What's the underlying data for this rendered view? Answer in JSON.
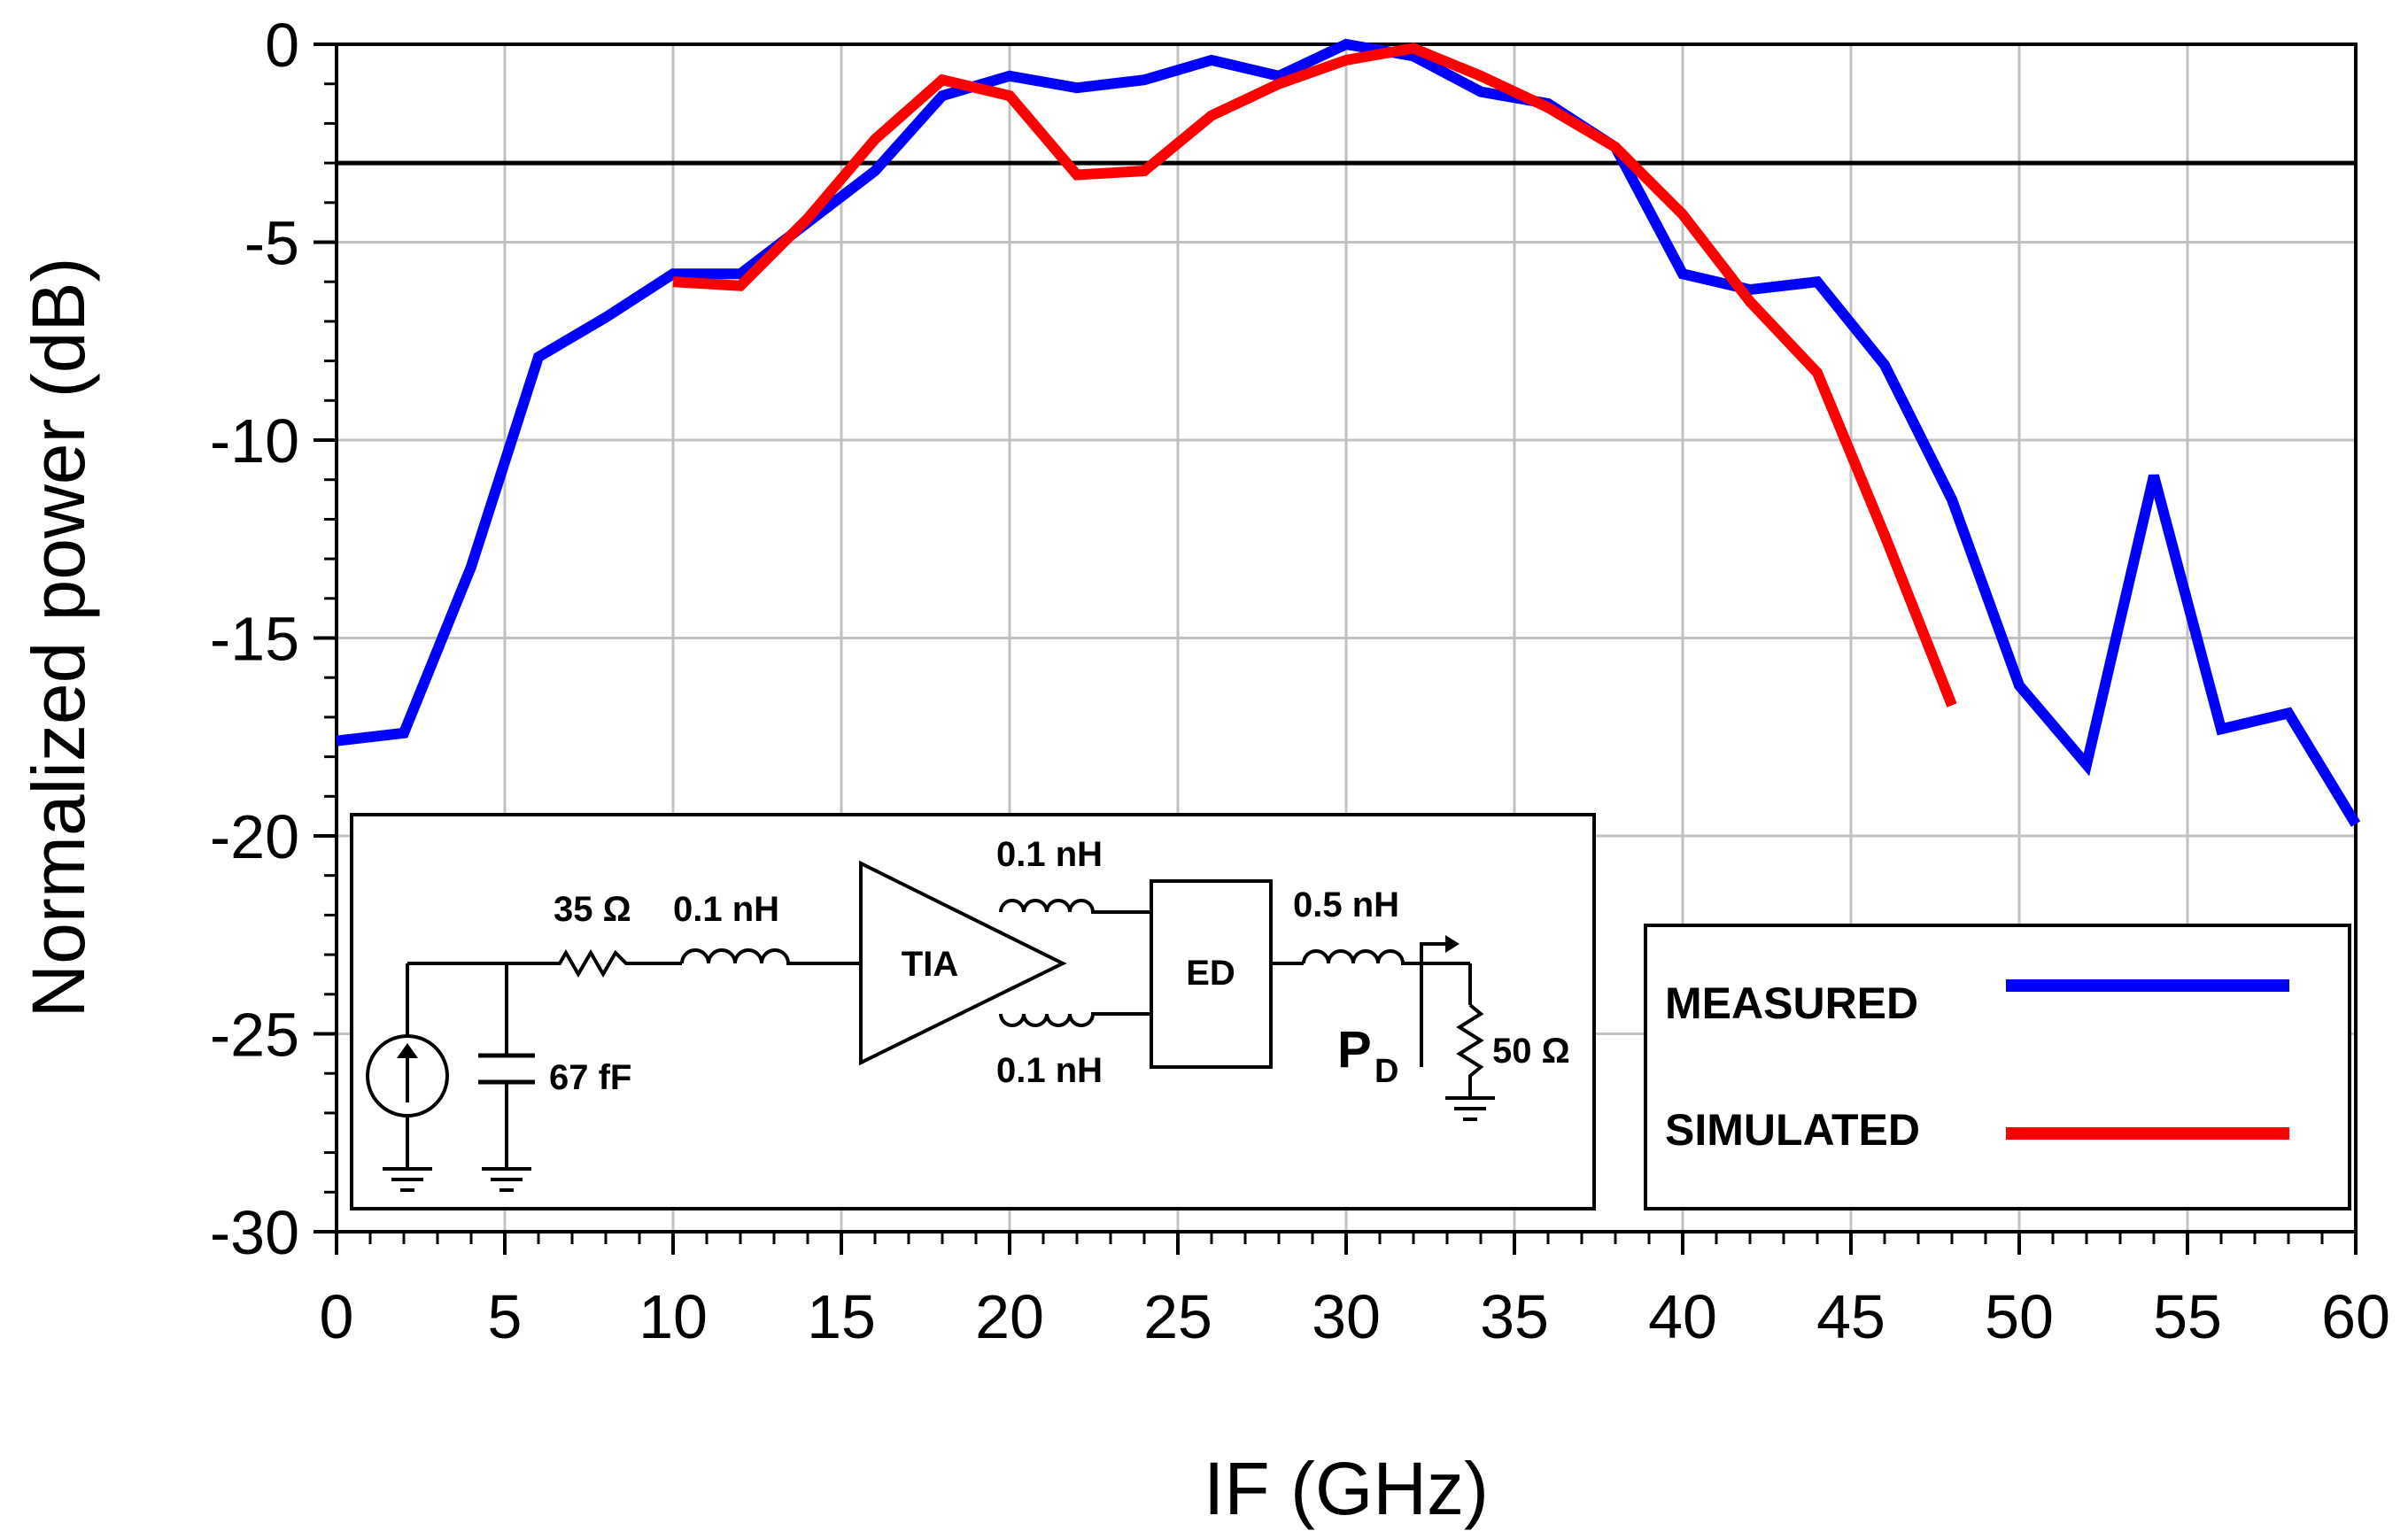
{
  "chart_data": {
    "type": "line",
    "xlabel": "IF (GHz)",
    "ylabel": "Normalized power (dB)",
    "xlim": [
      0,
      60
    ],
    "ylim": [
      -30,
      0
    ],
    "xticks": [
      0,
      5,
      10,
      15,
      20,
      25,
      30,
      35,
      40,
      45,
      50,
      55,
      60
    ],
    "yticks": [
      0,
      -5,
      -10,
      -15,
      -20,
      -25,
      -30
    ],
    "xtick_labels": [
      "0",
      "5",
      "10",
      "15",
      "20",
      "25",
      "30",
      "35",
      "40",
      "45",
      "50",
      "55",
      "60"
    ],
    "ytick_labels": [
      "0",
      "-5",
      "-10",
      "-15",
      "-20",
      "-25",
      "-30"
    ],
    "grid": true,
    "reference_line_y": -3,
    "legend_position": "bottom-right",
    "series": [
      {
        "name": "MEASURED",
        "color": "#0000ff",
        "x": [
          0,
          2,
          4,
          6,
          8,
          10,
          12,
          14,
          16,
          18,
          20,
          22,
          24,
          26,
          28,
          30,
          32,
          34,
          36,
          38,
          40,
          42,
          44,
          46,
          48,
          50,
          52,
          54,
          56,
          58,
          60
        ],
        "y": [
          -17.6,
          -17.4,
          -13.2,
          -7.9,
          -6.9,
          -5.8,
          -5.8,
          -4.5,
          -3.2,
          -1.3,
          -0.8,
          -1.1,
          -0.9,
          -0.4,
          -0.8,
          0.0,
          -0.3,
          -1.2,
          -1.5,
          -2.6,
          -5.8,
          -6.2,
          -6.0,
          -8.1,
          -11.5,
          -16.2,
          -18.2,
          -10.9,
          -17.3,
          -16.9,
          -19.7
        ]
      },
      {
        "name": "SIMULATED",
        "color": "#ff0000",
        "x": [
          10,
          12,
          14,
          16,
          18,
          20,
          22,
          24,
          26,
          28,
          30,
          32,
          34,
          36,
          38,
          40,
          42,
          44,
          46,
          48
        ],
        "y": [
          -6.0,
          -6.1,
          -4.4,
          -2.4,
          -0.9,
          -1.3,
          -3.3,
          -3.2,
          -1.8,
          -1.0,
          -0.4,
          -0.1,
          -0.8,
          -1.6,
          -2.6,
          -4.3,
          -6.5,
          -8.3,
          -12.4,
          -16.7
        ]
      }
    ]
  },
  "circuit": {
    "r1": "35 Ω",
    "l1": "0.1 nH",
    "cap": "67 fF",
    "tia": "TIA",
    "l_top": "0.1 nH",
    "l_bot": "0.1 nH",
    "ed": "ED",
    "l_out": "0.5 nH",
    "pd_main": "P",
    "pd_sub": "D",
    "r_load": "50 Ω"
  }
}
